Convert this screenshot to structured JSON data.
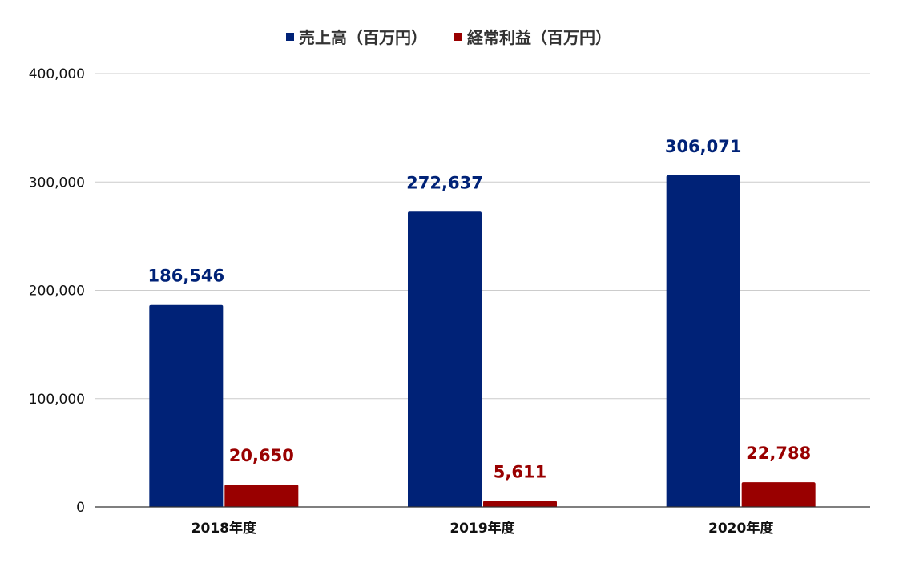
{
  "chart_data": {
    "type": "bar",
    "title": "",
    "categories": [
      "2018年度",
      "2019年度",
      "2020年度"
    ],
    "series": [
      {
        "name": "売上高（百万円）",
        "color": "#002277",
        "values": [
          186546,
          272637,
          306071
        ],
        "labels": [
          "186,546",
          "272,637",
          "306,071"
        ]
      },
      {
        "name": "経常利益（百万円）",
        "color": "#990000",
        "values": [
          20650,
          5611,
          22788
        ],
        "labels": [
          "20,650",
          "5,611",
          "22,788"
        ]
      }
    ],
    "ylim": [
      0,
      400000
    ],
    "yticks": [
      0,
      100000,
      200000,
      300000,
      400000
    ],
    "ytick_labels": [
      "0",
      "100,000",
      "200,000",
      "300,000",
      "400,000"
    ],
    "grid": true,
    "legend_position": "top-center"
  }
}
